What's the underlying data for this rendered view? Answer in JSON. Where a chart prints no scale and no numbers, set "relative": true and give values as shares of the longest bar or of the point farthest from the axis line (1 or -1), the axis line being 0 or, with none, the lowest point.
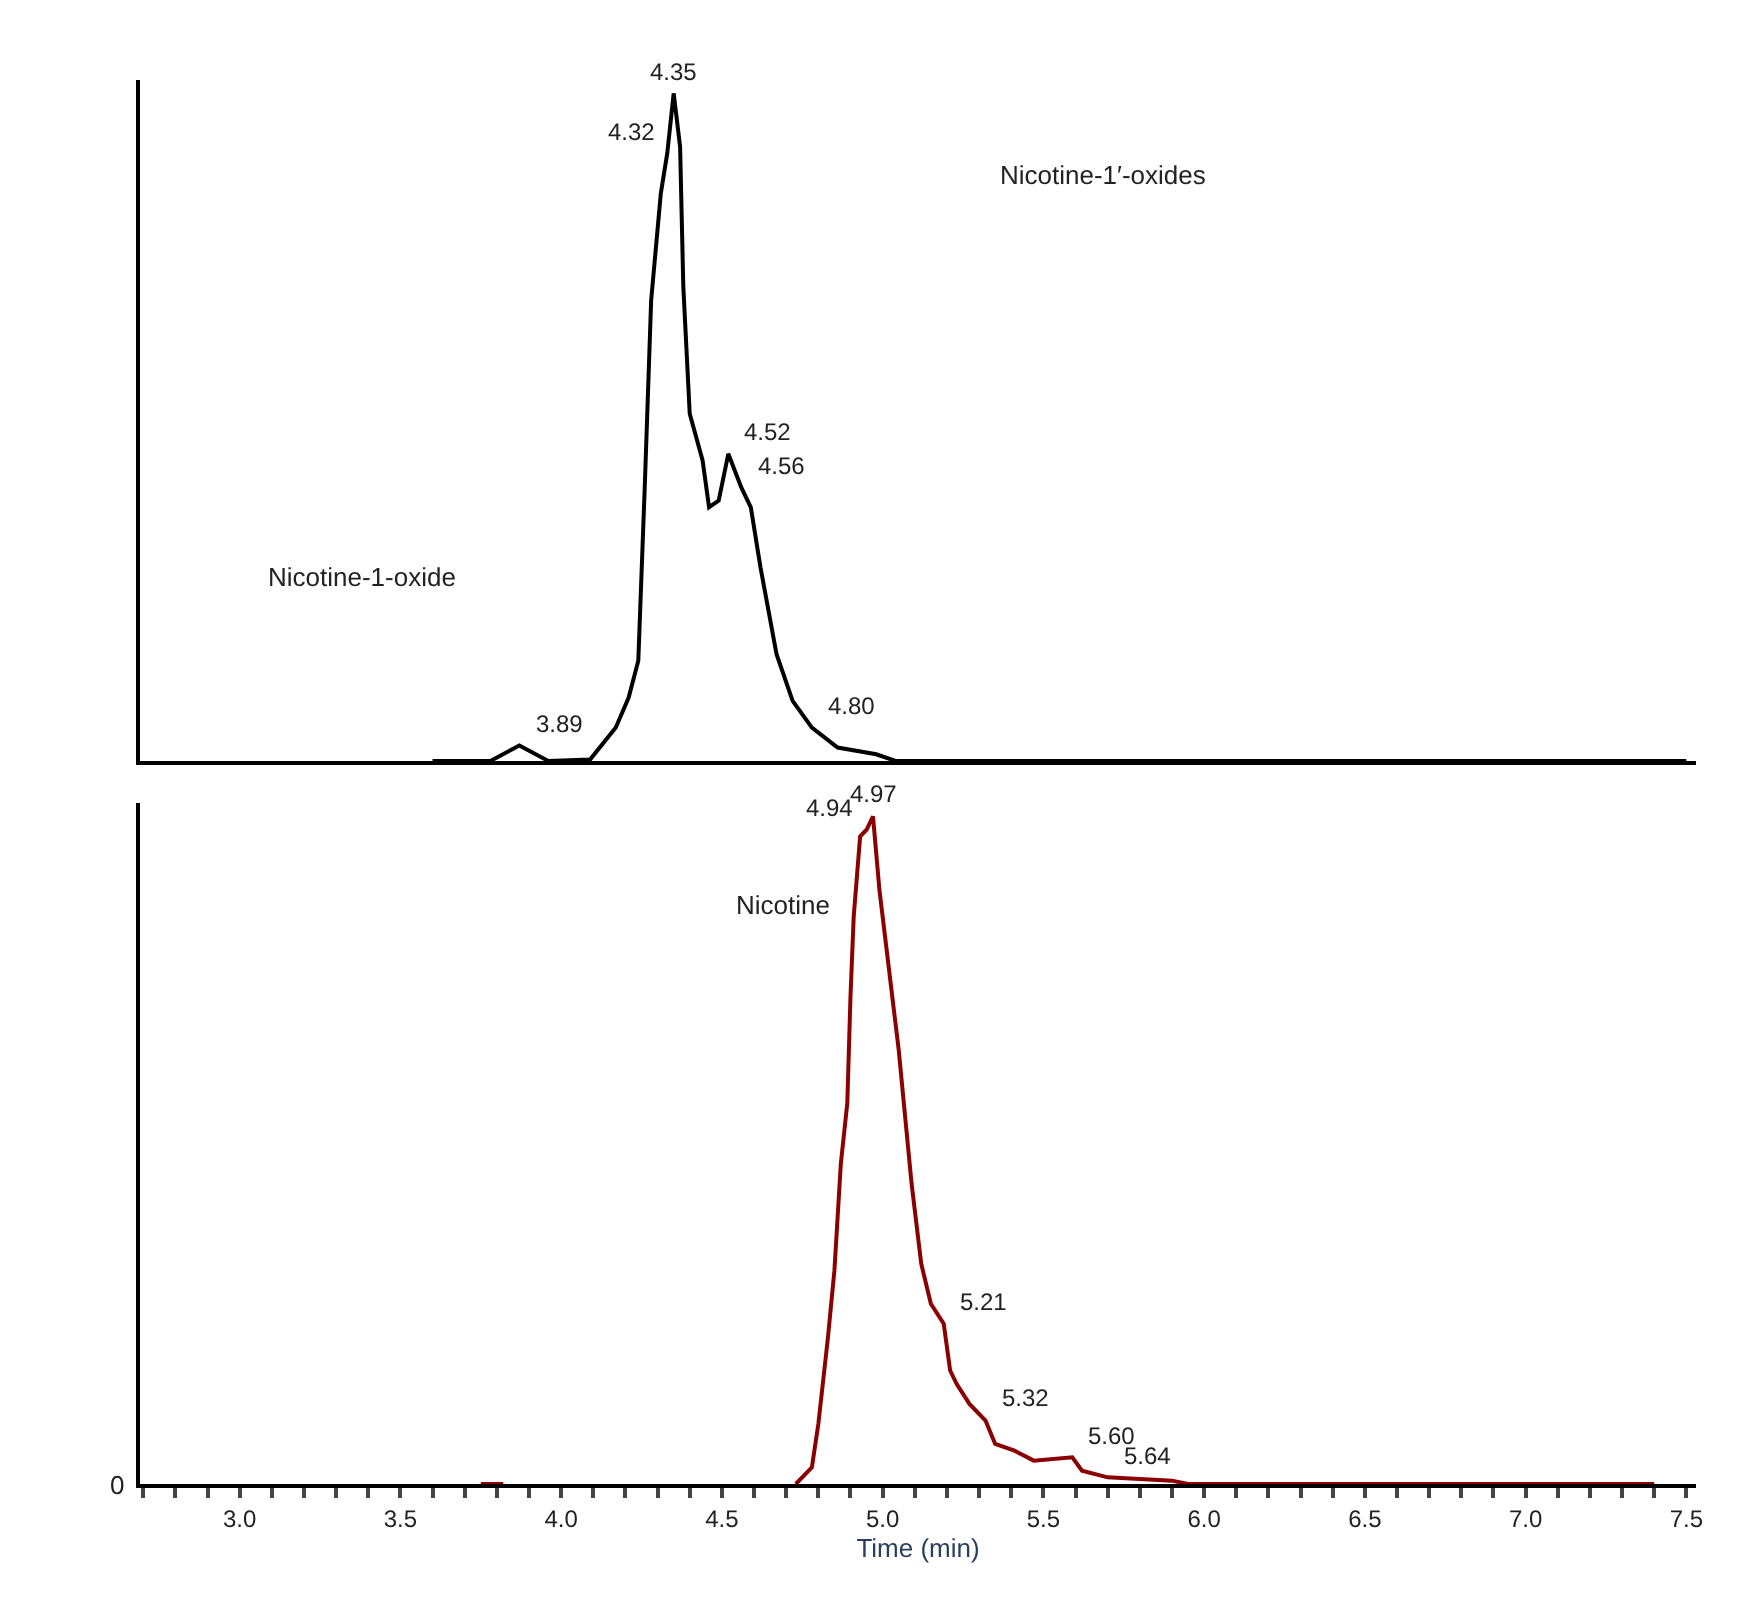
{
  "chart_data": [
    {
      "type": "line",
      "relative": true,
      "xlim": [
        2.69,
        7.53
      ],
      "marker": "none",
      "line_style": "solid",
      "series": [
        {
          "color": "#000000",
          "x": [
            3.6,
            3.78,
            3.87,
            3.96,
            4.09,
            4.17,
            4.21,
            4.24,
            4.26,
            4.28,
            4.31,
            4.33,
            4.35,
            4.37,
            4.38,
            4.4,
            4.44,
            4.46,
            4.49,
            4.52,
            4.56,
            4.59,
            4.62,
            4.67,
            4.72,
            4.78,
            4.86,
            4.98,
            5.04,
            7.5
          ],
          "values": [
            0,
            0,
            0.023,
            0,
            0.002,
            0.05,
            0.095,
            0.15,
            0.41,
            0.69,
            0.85,
            0.91,
            1.0,
            0.92,
            0.71,
            0.52,
            0.45,
            0.38,
            0.39,
            0.46,
            0.41,
            0.38,
            0.29,
            0.16,
            0.09,
            0.05,
            0.02,
            0.01,
            0,
            0
          ]
        }
      ],
      "annotations": [
        {
          "text": "4.35",
          "x": 4.35,
          "y": 1.0
        },
        {
          "text": "4.32",
          "x": 4.33,
          "y": 0.91
        },
        {
          "text": "4.52",
          "x": 4.52,
          "y": 0.46
        },
        {
          "text": "4.56",
          "x": 4.56,
          "y": 0.41
        },
        {
          "text": "4.80",
          "x": 4.78,
          "y": 0.05
        },
        {
          "text": "3.89",
          "x": 3.87,
          "y": 0.023
        },
        "Nicotine-1′-oxides",
        "Nicotine-1-oxide"
      ]
    },
    {
      "type": "line",
      "relative": true,
      "xlim": [
        2.69,
        7.53
      ],
      "marker": "none",
      "line_style": "solid",
      "xlabel": "Time (min)",
      "xticks": [
        {
          "value": 2.7,
          "label": null
        },
        {
          "value": 2.8,
          "label": null
        },
        {
          "value": 2.9,
          "label": null
        },
        {
          "value": 3.0,
          "label": "3.0"
        },
        {
          "value": 3.1,
          "label": null
        },
        {
          "value": 3.2,
          "label": null
        },
        {
          "value": 3.3,
          "label": null
        },
        {
          "value": 3.4,
          "label": null
        },
        {
          "value": 3.5,
          "label": "3.5"
        },
        {
          "value": 3.6,
          "label": null
        },
        {
          "value": 3.7,
          "label": null
        },
        {
          "value": 3.8,
          "label": null
        },
        {
          "value": 3.9,
          "label": null
        },
        {
          "value": 4.0,
          "label": "4.0"
        },
        {
          "value": 4.1,
          "label": null
        },
        {
          "value": 4.2,
          "label": null
        },
        {
          "value": 4.3,
          "label": null
        },
        {
          "value": 4.4,
          "label": null
        },
        {
          "value": 4.5,
          "label": "4.5"
        },
        {
          "value": 4.6,
          "label": null
        },
        {
          "value": 4.7,
          "label": null
        },
        {
          "value": 4.8,
          "label": null
        },
        {
          "value": 4.9,
          "label": null
        },
        {
          "value": 5.0,
          "label": "5.0"
        },
        {
          "value": 5.1,
          "label": null
        },
        {
          "value": 5.2,
          "label": null
        },
        {
          "value": 5.3,
          "label": null
        },
        {
          "value": 5.4,
          "label": null
        },
        {
          "value": 5.5,
          "label": "5.5"
        },
        {
          "value": 5.6,
          "label": null
        },
        {
          "value": 5.7,
          "label": null
        },
        {
          "value": 5.8,
          "label": null
        },
        {
          "value": 5.9,
          "label": null
        },
        {
          "value": 6.0,
          "label": "6.0"
        },
        {
          "value": 6.1,
          "label": null
        },
        {
          "value": 6.2,
          "label": null
        },
        {
          "value": 6.3,
          "label": null
        },
        {
          "value": 6.4,
          "label": null
        },
        {
          "value": 6.5,
          "label": "6.5"
        },
        {
          "value": 6.6,
          "label": null
        },
        {
          "value": 6.7,
          "label": null
        },
        {
          "value": 6.8,
          "label": null
        },
        {
          "value": 6.9,
          "label": null
        },
        {
          "value": 7.0,
          "label": "7.0"
        },
        {
          "value": 7.1,
          "label": null
        },
        {
          "value": 7.2,
          "label": null
        },
        {
          "value": 7.3,
          "label": null
        },
        {
          "value": 7.4,
          "label": null
        },
        {
          "value": 7.5,
          "label": "7.5"
        }
      ],
      "series": [
        {
          "color": "#8b0000",
          "x": [
            3.75,
            3.82
          ],
          "values": [
            0,
            0
          ]
        },
        {
          "color": "#8b0000",
          "x": [
            4.73,
            4.78,
            4.8,
            4.83,
            4.85,
            4.87,
            4.89,
            4.9,
            4.91,
            4.93,
            4.95,
            4.97,
            4.99,
            5.02,
            5.05,
            5.07,
            5.09,
            5.12,
            5.15,
            5.19,
            5.21,
            5.23,
            5.27,
            5.32,
            5.35,
            5.41,
            5.47,
            5.59,
            5.62,
            5.7,
            5.9,
            5.95,
            7.4
          ],
          "values": [
            0,
            0.025,
            0.09,
            0.22,
            0.32,
            0.48,
            0.57,
            0.73,
            0.85,
            0.97,
            0.98,
            1.0,
            0.89,
            0.77,
            0.65,
            0.55,
            0.45,
            0.33,
            0.27,
            0.24,
            0.17,
            0.15,
            0.12,
            0.095,
            0.06,
            0.05,
            0.035,
            0.04,
            0.02,
            0.01,
            0.005,
            0,
            0
          ]
        }
      ],
      "annotations": [
        {
          "text": "4.94",
          "x": 4.95,
          "y": 0.98
        },
        {
          "text": "4.97",
          "x": 4.97,
          "y": 1.0
        },
        {
          "text": "5.21",
          "x": 5.19,
          "y": 0.24
        },
        {
          "text": "5.32",
          "x": 5.32,
          "y": 0.095
        },
        {
          "text": "5.60",
          "x": 5.59,
          "y": 0.04
        },
        {
          "text": "5.64",
          "x": 5.7,
          "y": 0.01
        },
        "0",
        "Nicotine"
      ]
    }
  ]
}
